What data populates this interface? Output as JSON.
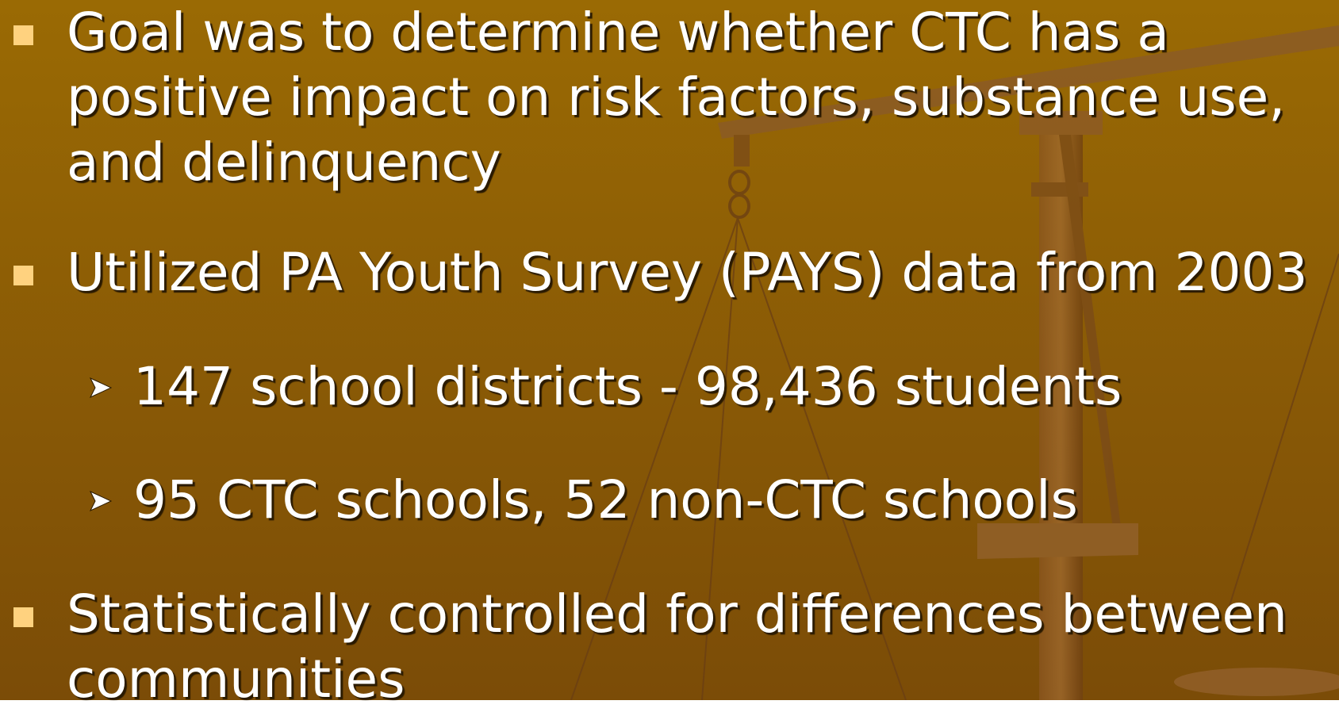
{
  "bullets": [
    {
      "text": "Goal was to determine whether CTC has a positive impact on risk factors, substance use, and delinquency"
    },
    {
      "text": "Utilized PA Youth Survey (PAYS) data from 2003",
      "sub": [
        "147 school districts - 98,436 students",
        "95 CTC schools, 52 non-CTC schools"
      ]
    },
    {
      "text": "Statistically controlled for differences between communities"
    }
  ]
}
